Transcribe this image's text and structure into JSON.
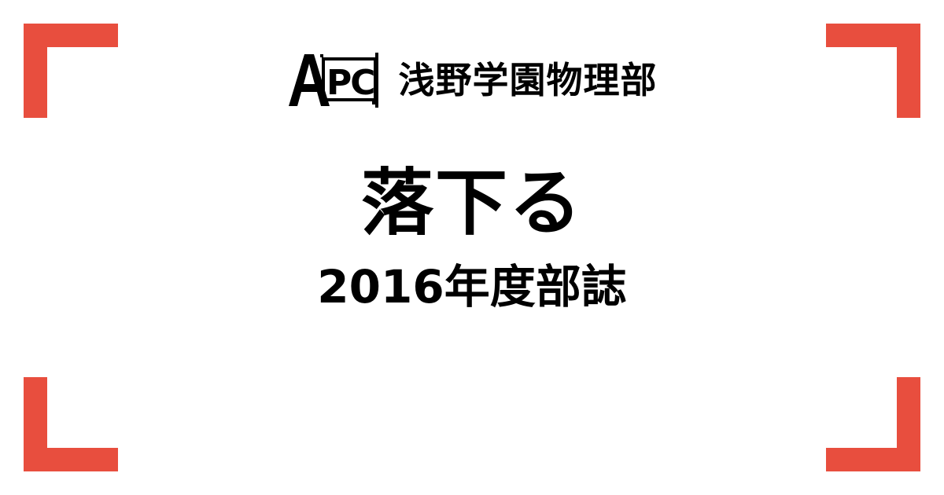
{
  "colors": {
    "accent": "#e84e3e",
    "text": "#000000",
    "background": "#ffffff"
  },
  "header": {
    "logo_text": "APC",
    "organization": "浅野学園物理部"
  },
  "main": {
    "title": "落下る",
    "subtitle": "2016年度部誌"
  }
}
